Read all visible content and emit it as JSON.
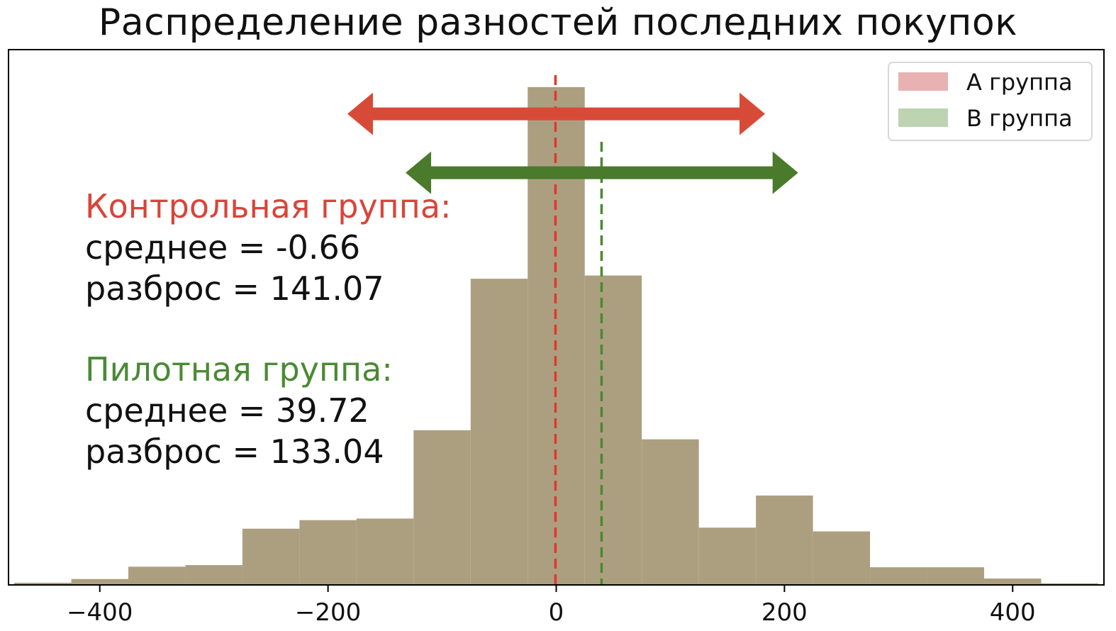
{
  "chart_data": {
    "type": "bar",
    "title": "Распределение разностей последних покупок",
    "xlabel": "",
    "ylabel": "",
    "xlim": [
      -480,
      480
    ],
    "ylim": [
      0,
      1
    ],
    "xticks": [
      -400,
      -200,
      0,
      200,
      400
    ],
    "xtick_labels": [
      "−400",
      "−200",
      "0",
      "200",
      "400"
    ],
    "bin_width": 50,
    "bins_start": [
      -475,
      -425,
      -375,
      -325,
      -275,
      -225,
      -175,
      -125,
      -75,
      -25,
      25,
      75,
      125,
      175,
      225,
      275,
      325,
      375,
      425
    ],
    "values": [
      0.004,
      0.011,
      0.034,
      0.037,
      0.105,
      0.121,
      0.124,
      0.289,
      0.572,
      0.93,
      0.578,
      0.272,
      0.107,
      0.167,
      0.1,
      0.033,
      0.033,
      0.012,
      0.003
    ],
    "bar_color": "#ac9f80",
    "mean_lines": [
      {
        "value": -0.66,
        "color": "#e0392b"
      },
      {
        "value": 39.72,
        "color": "#4b8a2d"
      }
    ],
    "range_arrows": [
      {
        "from": -183,
        "to": 183,
        "y": 0.88,
        "color": "#d84a38"
      },
      {
        "from": -132,
        "to": 212,
        "y": 0.77,
        "color": "#4a7a2c"
      }
    ],
    "legend": {
      "placement": "top-right",
      "entries": [
        {
          "label": "A группа",
          "color": "#e8b2b2"
        },
        {
          "label": "B группа",
          "color": "#bdd3b2"
        }
      ]
    },
    "grid": false
  },
  "annotations": {
    "control_title": "Контрольная группа:",
    "control_mean": "среднее = -0.66",
    "control_spread": "разброс = 141.07",
    "pilot_title": "Пилотная группа:",
    "pilot_mean": "среднее = 39.72",
    "pilot_spread": "разброс = 133.04",
    "control_color": "#d9443a",
    "pilot_color": "#4a8a34"
  }
}
